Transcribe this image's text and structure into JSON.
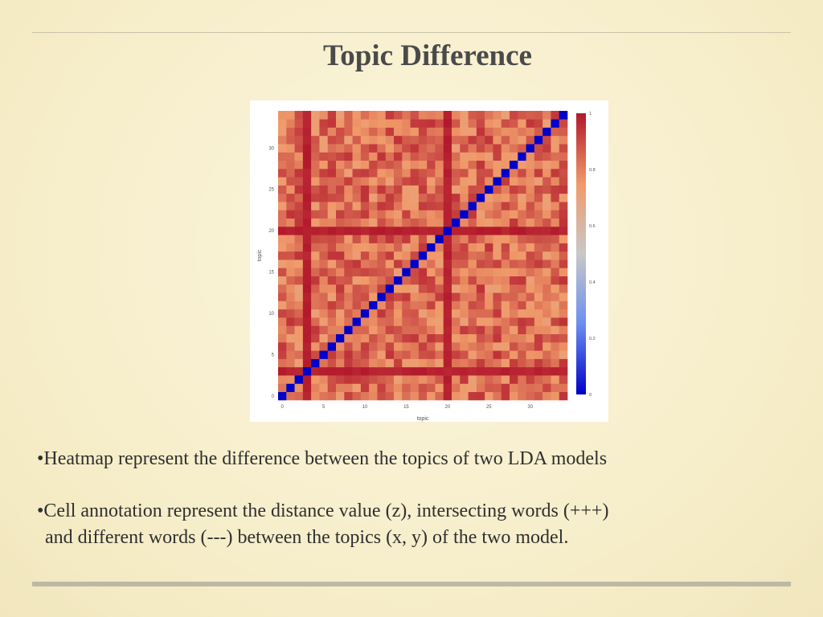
{
  "slide": {
    "title": "Topic Difference",
    "bullets": [
      {
        "line1": "•Heatmap represent the difference between the topics of two LDA models"
      },
      {
        "line1": "•Cell annotation represent the distance value (z), intersecting words (+++)",
        "line2": "and different words (---) between the topics (x, y) of the two model."
      }
    ]
  },
  "chart_data": {
    "type": "heatmap",
    "title": "",
    "xlabel": "topic",
    "ylabel": "topic",
    "x_range": [
      0,
      34
    ],
    "y_range": [
      0,
      34
    ],
    "x_ticks": [
      0,
      5,
      10,
      15,
      20,
      25,
      30
    ],
    "y_ticks": [
      0,
      5,
      10,
      15,
      20,
      25,
      30
    ],
    "colorbar": {
      "min": 0,
      "max": 1,
      "ticks": [
        0,
        0.2,
        0.4,
        0.6,
        0.8,
        1
      ]
    },
    "colorscale": [
      "#0000c8",
      "#6b8ef0",
      "#c8c8c8",
      "#f09a6a",
      "#b2182b"
    ],
    "diagonal_value": 0,
    "high_rows": [
      3,
      20
    ],
    "high_cols": [
      3,
      20
    ],
    "typical_off_diagonal_range": [
      0.72,
      0.95
    ]
  }
}
